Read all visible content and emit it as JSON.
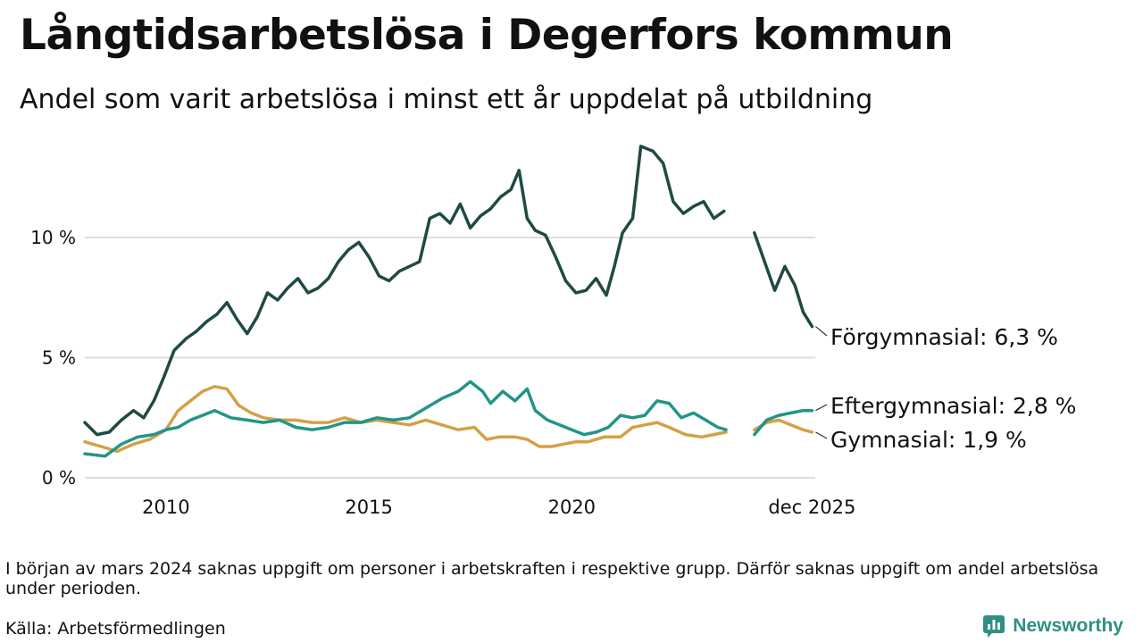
{
  "header": {
    "title": "Långtidsarbetslösa i Degerfors kommun",
    "subtitle": "Andel som varit arbetslösa i minst ett år uppdelat på utbildning"
  },
  "footer": {
    "note": "I början av mars 2024 saknas uppgift om personer i arbetskraften i respektive grupp. Därför saknas uppgift om andel arbetslösa under perioden.",
    "source": "Källa: Arbetsförmedlingen",
    "brand": "Newsworthy"
  },
  "colors": {
    "forgymnasial": "#1f4a44",
    "eftergymnasial": "#229588",
    "gymnasial": "#d4a046",
    "grid": "#dddddd",
    "brand": "#2f8f83"
  },
  "chart_data": {
    "type": "line",
    "title": "Långtidsarbetslösa i Degerfors kommun",
    "xlabel": "",
    "ylabel": "",
    "xlim": [
      2008.0,
      2026.0
    ],
    "ylim": [
      0,
      14.5
    ],
    "y_ticks": [
      0,
      5,
      10
    ],
    "y_tick_labels": [
      "0 %",
      "5 %",
      "10 %"
    ],
    "x_ticks": [
      2010,
      2015,
      2020,
      2025.92
    ],
    "x_tick_labels": [
      "2010",
      "2015",
      "2020",
      "dec 2025"
    ],
    "gap": [
      2024.17,
      2024.34
    ],
    "grid": true,
    "series": [
      {
        "name": "Förgymnasial",
        "end_label": "Förgymnasial: 6,3 %",
        "last_value": 6.3,
        "color": "#1f4a44",
        "points": [
          [
            2008.0,
            2.3
          ],
          [
            2008.3,
            1.8
          ],
          [
            2008.6,
            1.9
          ],
          [
            2008.9,
            2.4
          ],
          [
            2009.2,
            2.8
          ],
          [
            2009.45,
            2.5
          ],
          [
            2009.7,
            3.2
          ],
          [
            2009.95,
            4.2
          ],
          [
            2010.2,
            5.3
          ],
          [
            2010.5,
            5.8
          ],
          [
            2010.75,
            6.1
          ],
          [
            2011.0,
            6.5
          ],
          [
            2011.25,
            6.8
          ],
          [
            2011.5,
            7.3
          ],
          [
            2011.75,
            6.6
          ],
          [
            2012.0,
            6.0
          ],
          [
            2012.25,
            6.7
          ],
          [
            2012.5,
            7.7
          ],
          [
            2012.75,
            7.4
          ],
          [
            2013.0,
            7.9
          ],
          [
            2013.25,
            8.3
          ],
          [
            2013.5,
            7.7
          ],
          [
            2013.75,
            7.9
          ],
          [
            2014.0,
            8.3
          ],
          [
            2014.25,
            9.0
          ],
          [
            2014.5,
            9.5
          ],
          [
            2014.75,
            9.8
          ],
          [
            2015.0,
            9.2
          ],
          [
            2015.25,
            8.4
          ],
          [
            2015.5,
            8.2
          ],
          [
            2015.75,
            8.6
          ],
          [
            2016.0,
            8.8
          ],
          [
            2016.25,
            9.0
          ],
          [
            2016.5,
            10.8
          ],
          [
            2016.75,
            11.0
          ],
          [
            2017.0,
            10.6
          ],
          [
            2017.25,
            11.4
          ],
          [
            2017.5,
            10.4
          ],
          [
            2017.75,
            10.9
          ],
          [
            2018.0,
            11.2
          ],
          [
            2018.25,
            11.7
          ],
          [
            2018.5,
            12.0
          ],
          [
            2018.7,
            12.8
          ],
          [
            2018.9,
            10.8
          ],
          [
            2019.1,
            10.3
          ],
          [
            2019.35,
            10.1
          ],
          [
            2019.6,
            9.2
          ],
          [
            2019.85,
            8.2
          ],
          [
            2020.1,
            7.7
          ],
          [
            2020.35,
            7.8
          ],
          [
            2020.6,
            8.3
          ],
          [
            2020.85,
            7.6
          ],
          [
            2021.05,
            8.8
          ],
          [
            2021.25,
            10.2
          ],
          [
            2021.5,
            10.8
          ],
          [
            2021.7,
            13.8
          ],
          [
            2022.0,
            13.6
          ],
          [
            2022.25,
            13.1
          ],
          [
            2022.5,
            11.5
          ],
          [
            2022.75,
            11.0
          ],
          [
            2023.0,
            11.3
          ],
          [
            2023.25,
            11.5
          ],
          [
            2023.5,
            10.8
          ],
          [
            2023.75,
            11.1
          ],
          [
            null,
            null
          ],
          [
            2024.5,
            10.2
          ],
          [
            2024.75,
            9.0
          ],
          [
            2025.0,
            7.8
          ],
          [
            2025.25,
            8.8
          ],
          [
            2025.5,
            8.0
          ],
          [
            2025.7,
            6.9
          ],
          [
            2025.92,
            6.3
          ]
        ]
      },
      {
        "name": "Eftergymnasial",
        "end_label": "Eftergymnasial: 2,8 %",
        "last_value": 2.8,
        "color": "#229588",
        "points": [
          [
            2008.0,
            1.0
          ],
          [
            2008.5,
            0.9
          ],
          [
            2008.9,
            1.4
          ],
          [
            2009.3,
            1.7
          ],
          [
            2009.7,
            1.8
          ],
          [
            2010.0,
            2.0
          ],
          [
            2010.3,
            2.1
          ],
          [
            2010.6,
            2.4
          ],
          [
            2010.9,
            2.6
          ],
          [
            2011.2,
            2.8
          ],
          [
            2011.6,
            2.5
          ],
          [
            2012.0,
            2.4
          ],
          [
            2012.4,
            2.3
          ],
          [
            2012.8,
            2.4
          ],
          [
            2013.2,
            2.1
          ],
          [
            2013.6,
            2.0
          ],
          [
            2014.0,
            2.1
          ],
          [
            2014.4,
            2.3
          ],
          [
            2014.8,
            2.3
          ],
          [
            2015.2,
            2.5
          ],
          [
            2015.6,
            2.4
          ],
          [
            2016.0,
            2.5
          ],
          [
            2016.4,
            2.9
          ],
          [
            2016.8,
            3.3
          ],
          [
            2017.2,
            3.6
          ],
          [
            2017.5,
            4.0
          ],
          [
            2017.8,
            3.6
          ],
          [
            2018.0,
            3.1
          ],
          [
            2018.3,
            3.6
          ],
          [
            2018.6,
            3.2
          ],
          [
            2018.9,
            3.7
          ],
          [
            2019.1,
            2.8
          ],
          [
            2019.4,
            2.4
          ],
          [
            2019.7,
            2.2
          ],
          [
            2020.0,
            2.0
          ],
          [
            2020.3,
            1.8
          ],
          [
            2020.6,
            1.9
          ],
          [
            2020.9,
            2.1
          ],
          [
            2021.2,
            2.6
          ],
          [
            2021.5,
            2.5
          ],
          [
            2021.8,
            2.6
          ],
          [
            2022.1,
            3.2
          ],
          [
            2022.4,
            3.1
          ],
          [
            2022.7,
            2.5
          ],
          [
            2023.0,
            2.7
          ],
          [
            2023.3,
            2.4
          ],
          [
            2023.6,
            2.1
          ],
          [
            2023.8,
            2.0
          ],
          [
            null,
            null
          ],
          [
            2024.5,
            1.8
          ],
          [
            2024.8,
            2.4
          ],
          [
            2025.1,
            2.6
          ],
          [
            2025.4,
            2.7
          ],
          [
            2025.7,
            2.8
          ],
          [
            2025.92,
            2.8
          ]
        ]
      },
      {
        "name": "Gymnasial",
        "end_label": "Gymnasial: 1,9 %",
        "last_value": 1.9,
        "color": "#d4a046",
        "points": [
          [
            2008.0,
            1.5
          ],
          [
            2008.4,
            1.3
          ],
          [
            2008.8,
            1.1
          ],
          [
            2009.2,
            1.4
          ],
          [
            2009.6,
            1.6
          ],
          [
            2010.0,
            2.0
          ],
          [
            2010.3,
            2.8
          ],
          [
            2010.6,
            3.2
          ],
          [
            2010.9,
            3.6
          ],
          [
            2011.2,
            3.8
          ],
          [
            2011.5,
            3.7
          ],
          [
            2011.8,
            3.0
          ],
          [
            2012.1,
            2.7
          ],
          [
            2012.4,
            2.5
          ],
          [
            2012.8,
            2.4
          ],
          [
            2013.2,
            2.4
          ],
          [
            2013.6,
            2.3
          ],
          [
            2014.0,
            2.3
          ],
          [
            2014.4,
            2.5
          ],
          [
            2014.8,
            2.3
          ],
          [
            2015.2,
            2.4
          ],
          [
            2015.6,
            2.3
          ],
          [
            2016.0,
            2.2
          ],
          [
            2016.4,
            2.4
          ],
          [
            2016.8,
            2.2
          ],
          [
            2017.2,
            2.0
          ],
          [
            2017.6,
            2.1
          ],
          [
            2017.9,
            1.6
          ],
          [
            2018.2,
            1.7
          ],
          [
            2018.6,
            1.7
          ],
          [
            2018.9,
            1.6
          ],
          [
            2019.2,
            1.3
          ],
          [
            2019.5,
            1.3
          ],
          [
            2019.8,
            1.4
          ],
          [
            2020.1,
            1.5
          ],
          [
            2020.4,
            1.5
          ],
          [
            2020.8,
            1.7
          ],
          [
            2021.2,
            1.7
          ],
          [
            2021.5,
            2.1
          ],
          [
            2021.8,
            2.2
          ],
          [
            2022.1,
            2.3
          ],
          [
            2022.4,
            2.1
          ],
          [
            2022.8,
            1.8
          ],
          [
            2023.2,
            1.7
          ],
          [
            2023.5,
            1.8
          ],
          [
            2023.8,
            1.9
          ],
          [
            null,
            null
          ],
          [
            2024.5,
            2.0
          ],
          [
            2024.8,
            2.3
          ],
          [
            2025.1,
            2.4
          ],
          [
            2025.4,
            2.2
          ],
          [
            2025.7,
            2.0
          ],
          [
            2025.92,
            1.9
          ]
        ]
      }
    ]
  }
}
